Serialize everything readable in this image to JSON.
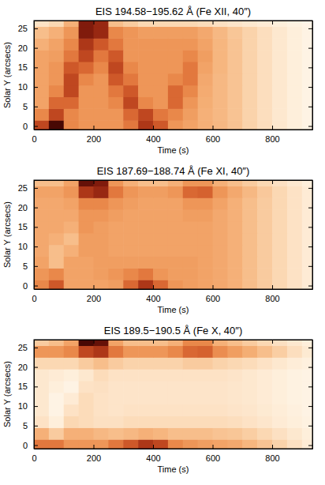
{
  "chart_data": [
    {
      "type": "heatmap",
      "title": "EIS 194.58−195.62 Å (Fe XII, 40″)",
      "x_label": "Time (s)",
      "y_label": "Solar Y (arcsecs)",
      "xlim": [
        0,
        935
      ],
      "ylim": [
        -0.9,
        27
      ],
      "xticks": [
        0,
        200,
        400,
        600,
        800
      ],
      "yticks": [
        0,
        5,
        10,
        15,
        20,
        25
      ],
      "zlim": [
        0,
        1
      ],
      "x": [
        25,
        75,
        125,
        175,
        225,
        275,
        325,
        375,
        425,
        475,
        525,
        575,
        625,
        675,
        725,
        775,
        825,
        875,
        925
      ],
      "y": [
        0,
        3,
        6,
        9,
        12,
        15,
        18,
        21,
        24,
        27
      ],
      "cells": [
        [
          0.7,
          0.95,
          0.5,
          0.45,
          0.45,
          0.45,
          0.55,
          0.75,
          0.65,
          0.45,
          0.4,
          0.35,
          0.32,
          0.28,
          0.22,
          0.17,
          0.12,
          0.08,
          0.05
        ],
        [
          0.5,
          0.7,
          0.5,
          0.45,
          0.45,
          0.45,
          0.6,
          0.7,
          0.55,
          0.5,
          0.42,
          0.35,
          0.32,
          0.28,
          0.22,
          0.17,
          0.12,
          0.08,
          0.05
        ],
        [
          0.4,
          0.6,
          0.6,
          0.45,
          0.45,
          0.5,
          0.7,
          0.5,
          0.45,
          0.6,
          0.45,
          0.36,
          0.32,
          0.28,
          0.22,
          0.17,
          0.12,
          0.08,
          0.05
        ],
        [
          0.4,
          0.5,
          0.7,
          0.45,
          0.45,
          0.55,
          0.65,
          0.45,
          0.45,
          0.6,
          0.5,
          0.37,
          0.32,
          0.28,
          0.22,
          0.17,
          0.12,
          0.08,
          0.05
        ],
        [
          0.4,
          0.45,
          0.7,
          0.5,
          0.45,
          0.65,
          0.55,
          0.45,
          0.45,
          0.5,
          0.55,
          0.38,
          0.32,
          0.28,
          0.22,
          0.17,
          0.12,
          0.08,
          0.05
        ],
        [
          0.4,
          0.45,
          0.65,
          0.6,
          0.5,
          0.7,
          0.5,
          0.45,
          0.45,
          0.45,
          0.55,
          0.4,
          0.33,
          0.28,
          0.22,
          0.17,
          0.12,
          0.08,
          0.05
        ],
        [
          0.4,
          0.42,
          0.55,
          0.7,
          0.55,
          0.65,
          0.45,
          0.45,
          0.45,
          0.45,
          0.5,
          0.42,
          0.33,
          0.28,
          0.22,
          0.17,
          0.12,
          0.08,
          0.05
        ],
        [
          0.35,
          0.4,
          0.5,
          0.75,
          0.65,
          0.55,
          0.45,
          0.45,
          0.45,
          0.45,
          0.45,
          0.4,
          0.33,
          0.28,
          0.22,
          0.17,
          0.12,
          0.08,
          0.05
        ],
        [
          0.3,
          0.35,
          0.45,
          0.85,
          0.8,
          0.5,
          0.45,
          0.42,
          0.42,
          0.42,
          0.42,
          0.38,
          0.32,
          0.27,
          0.22,
          0.17,
          0.12,
          0.08,
          0.05
        ],
        [
          0.15,
          0.2,
          0.35,
          0.85,
          0.8,
          0.3,
          0.25,
          0.2,
          0.2,
          0.2,
          0.2,
          0.18,
          0.16,
          0.14,
          0.12,
          0.1,
          0.08,
          0.06,
          0.04
        ]
      ]
    },
    {
      "type": "heatmap",
      "title": "EIS 187.69−188.74 Å (Fe XI, 40″)",
      "x_label": "Time (s)",
      "y_label": "Solar Y (arcsecs)",
      "xlim": [
        0,
        935
      ],
      "ylim": [
        -0.9,
        27
      ],
      "xticks": [
        0,
        200,
        400,
        600,
        800
      ],
      "yticks": [
        0,
        5,
        10,
        15,
        20,
        25
      ],
      "zlim": [
        0,
        1
      ],
      "x": [
        25,
        75,
        125,
        175,
        225,
        275,
        325,
        375,
        425,
        475,
        525,
        575,
        625,
        675,
        725,
        775,
        825,
        875,
        925
      ],
      "y": [
        0,
        3,
        6,
        9,
        12,
        15,
        18,
        21,
        24,
        27
      ],
      "cells": [
        [
          0.5,
          0.65,
          0.4,
          0.4,
          0.4,
          0.42,
          0.6,
          0.75,
          0.6,
          0.45,
          0.42,
          0.4,
          0.38,
          0.35,
          0.3,
          0.25,
          0.2,
          0.15,
          0.1
        ],
        [
          0.45,
          0.5,
          0.4,
          0.4,
          0.42,
          0.45,
          0.5,
          0.55,
          0.45,
          0.42,
          0.42,
          0.4,
          0.38,
          0.35,
          0.3,
          0.25,
          0.2,
          0.15,
          0.1
        ],
        [
          0.4,
          0.3,
          0.4,
          0.4,
          0.42,
          0.42,
          0.42,
          0.42,
          0.42,
          0.42,
          0.42,
          0.4,
          0.38,
          0.35,
          0.3,
          0.25,
          0.2,
          0.15,
          0.1
        ],
        [
          0.38,
          0.3,
          0.35,
          0.42,
          0.42,
          0.4,
          0.4,
          0.4,
          0.4,
          0.4,
          0.4,
          0.4,
          0.38,
          0.35,
          0.3,
          0.25,
          0.2,
          0.15,
          0.1
        ],
        [
          0.38,
          0.35,
          0.3,
          0.42,
          0.42,
          0.4,
          0.4,
          0.4,
          0.4,
          0.4,
          0.4,
          0.4,
          0.38,
          0.35,
          0.3,
          0.25,
          0.2,
          0.15,
          0.1
        ],
        [
          0.38,
          0.38,
          0.35,
          0.45,
          0.42,
          0.4,
          0.4,
          0.4,
          0.4,
          0.4,
          0.4,
          0.4,
          0.38,
          0.35,
          0.3,
          0.25,
          0.2,
          0.15,
          0.1
        ],
        [
          0.38,
          0.38,
          0.38,
          0.45,
          0.45,
          0.42,
          0.4,
          0.4,
          0.4,
          0.4,
          0.42,
          0.42,
          0.38,
          0.35,
          0.3,
          0.25,
          0.2,
          0.15,
          0.1
        ],
        [
          0.38,
          0.38,
          0.4,
          0.5,
          0.5,
          0.45,
          0.42,
          0.4,
          0.4,
          0.4,
          0.45,
          0.45,
          0.4,
          0.35,
          0.3,
          0.25,
          0.2,
          0.15,
          0.1
        ],
        [
          0.4,
          0.4,
          0.45,
          0.75,
          0.8,
          0.55,
          0.45,
          0.42,
          0.42,
          0.45,
          0.6,
          0.62,
          0.45,
          0.38,
          0.32,
          0.26,
          0.2,
          0.15,
          0.1
        ],
        [
          0.3,
          0.3,
          0.4,
          0.9,
          0.85,
          0.45,
          0.35,
          0.3,
          0.3,
          0.35,
          0.45,
          0.45,
          0.35,
          0.3,
          0.25,
          0.2,
          0.16,
          0.12,
          0.08
        ]
      ]
    },
    {
      "type": "heatmap",
      "title": "EIS 189.5−190.5 Å (Fe X, 40″)",
      "x_label": "Time (s)",
      "y_label": "Solar Y (arcsecs)",
      "xlim": [
        0,
        935
      ],
      "ylim": [
        -0.9,
        27
      ],
      "xticks": [
        0,
        200,
        400,
        600,
        800
      ],
      "yticks": [
        0,
        5,
        10,
        15,
        20,
        25
      ],
      "zlim": [
        0,
        1
      ],
      "x": [
        25,
        75,
        125,
        175,
        225,
        275,
        325,
        375,
        425,
        475,
        525,
        575,
        625,
        675,
        725,
        775,
        825,
        875,
        925
      ],
      "y": [
        0,
        3,
        6,
        9,
        12,
        15,
        18,
        21,
        24,
        27
      ],
      "cells": [
        [
          0.55,
          0.55,
          0.45,
          0.45,
          0.45,
          0.55,
          0.65,
          0.75,
          0.7,
          0.5,
          0.45,
          0.42,
          0.4,
          0.38,
          0.33,
          0.28,
          0.22,
          0.16,
          0.1
        ],
        [
          0.35,
          0.25,
          0.35,
          0.35,
          0.32,
          0.3,
          0.32,
          0.35,
          0.33,
          0.3,
          0.3,
          0.3,
          0.28,
          0.27,
          0.24,
          0.2,
          0.16,
          0.12,
          0.08
        ],
        [
          0.15,
          0.08,
          0.2,
          0.18,
          0.16,
          0.16,
          0.18,
          0.18,
          0.18,
          0.18,
          0.18,
          0.18,
          0.18,
          0.17,
          0.15,
          0.13,
          0.1,
          0.08,
          0.06
        ],
        [
          0.12,
          0.05,
          0.15,
          0.18,
          0.15,
          0.14,
          0.15,
          0.15,
          0.15,
          0.15,
          0.15,
          0.15,
          0.15,
          0.14,
          0.13,
          0.11,
          0.09,
          0.07,
          0.05
        ],
        [
          0.12,
          0.05,
          0.1,
          0.18,
          0.15,
          0.14,
          0.14,
          0.14,
          0.14,
          0.14,
          0.14,
          0.14,
          0.14,
          0.13,
          0.12,
          0.1,
          0.08,
          0.06,
          0.05
        ],
        [
          0.12,
          0.08,
          0.05,
          0.15,
          0.16,
          0.14,
          0.14,
          0.14,
          0.14,
          0.14,
          0.14,
          0.14,
          0.14,
          0.13,
          0.12,
          0.1,
          0.08,
          0.06,
          0.05
        ],
        [
          0.12,
          0.1,
          0.08,
          0.12,
          0.18,
          0.15,
          0.15,
          0.15,
          0.15,
          0.15,
          0.15,
          0.15,
          0.15,
          0.14,
          0.12,
          0.1,
          0.08,
          0.06,
          0.05
        ],
        [
          0.2,
          0.2,
          0.2,
          0.25,
          0.3,
          0.25,
          0.22,
          0.22,
          0.22,
          0.22,
          0.25,
          0.25,
          0.22,
          0.2,
          0.18,
          0.15,
          0.12,
          0.09,
          0.07
        ],
        [
          0.45,
          0.45,
          0.5,
          0.7,
          0.75,
          0.55,
          0.45,
          0.45,
          0.45,
          0.5,
          0.6,
          0.62,
          0.48,
          0.42,
          0.36,
          0.3,
          0.24,
          0.17,
          0.11
        ],
        [
          0.25,
          0.3,
          0.4,
          0.95,
          0.9,
          0.4,
          0.3,
          0.3,
          0.3,
          0.35,
          0.5,
          0.5,
          0.35,
          0.3,
          0.25,
          0.2,
          0.16,
          0.12,
          0.08
        ]
      ]
    }
  ]
}
